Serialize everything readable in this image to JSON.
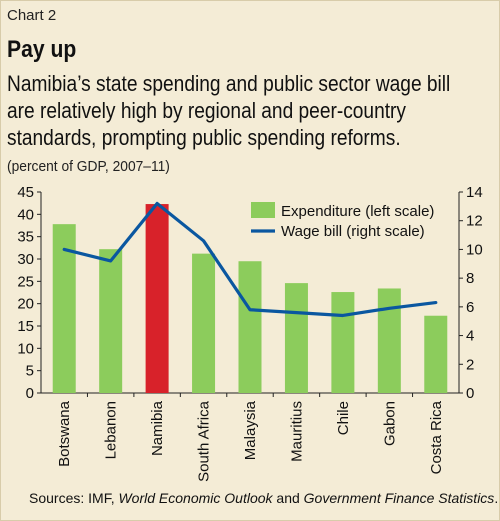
{
  "header": {
    "chart_number": "Chart 2",
    "title": "Pay up",
    "subtitle_line1": "Namibia’s state spending and public sector wage bill",
    "subtitle_line2": "are relatively high by regional and peer-country",
    "subtitle_line3": "standards, prompting public spending reforms.",
    "unit_note": "(percent of GDP, 2007–11)"
  },
  "footer": {
    "source_prefix": "Sources: IMF, ",
    "source_weo": "World Economic Outlook",
    "source_and": " and ",
    "source_gfs": "Government Finance Statistics",
    "source_end": "."
  },
  "colors": {
    "background": "#f4ecd6",
    "bar": "#8ccc5c",
    "highlight_bar": "#d8222a",
    "line": "#0a57a0"
  },
  "chart_data": {
    "type": "bar",
    "categories": [
      "Botswana",
      "Lebanon",
      "Namibia",
      "South Africa",
      "Malaysia",
      "Mauritius",
      "Chile",
      "Gabon",
      "Costa Rica"
    ],
    "highlight_category": "Namibia",
    "series": [
      {
        "name": "Expenditure (left scale)",
        "type": "bar",
        "axis": "left",
        "values": [
          37.8,
          32.2,
          42.3,
          31.2,
          29.5,
          24.6,
          22.6,
          23.4,
          17.3
        ]
      },
      {
        "name": "Wage bill (right scale)",
        "type": "line",
        "axis": "right",
        "values": [
          10.0,
          9.2,
          13.2,
          10.6,
          5.8,
          5.6,
          5.4,
          5.9,
          6.3
        ]
      }
    ],
    "left_axis": {
      "min": 0,
      "max": 45,
      "ticks": [
        "0",
        "5",
        "10",
        "15",
        "20",
        "25",
        "30",
        "35",
        "40",
        "45"
      ]
    },
    "right_axis": {
      "min": 0,
      "max": 14,
      "ticks": [
        "0",
        "2",
        "4",
        "6",
        "8",
        "10",
        "12",
        "14"
      ]
    },
    "legend_position": "top-right",
    "grid": false
  }
}
